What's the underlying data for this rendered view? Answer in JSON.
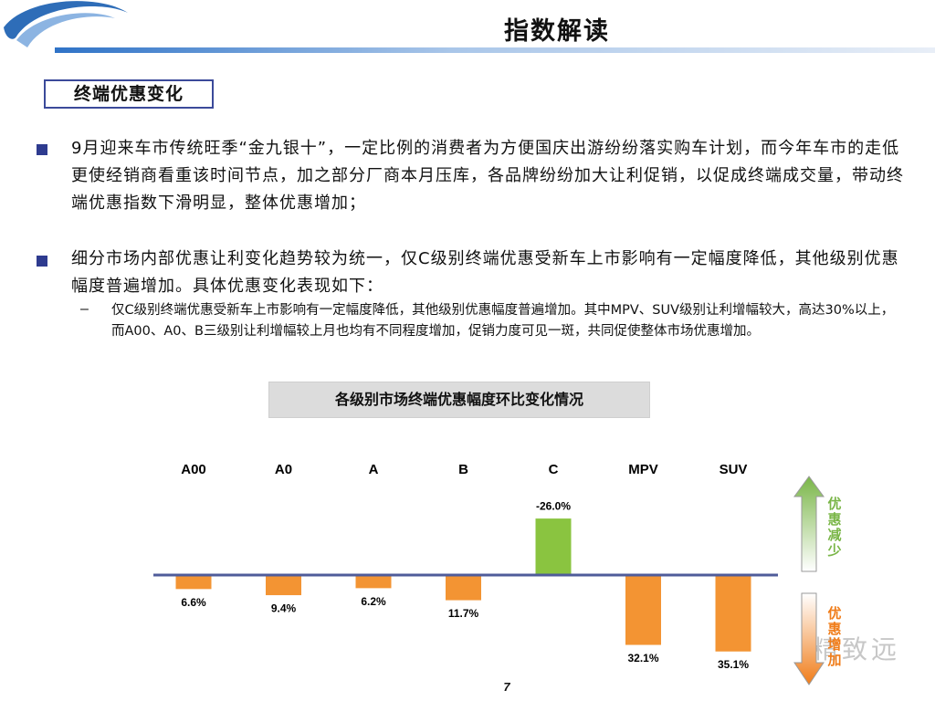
{
  "header": {
    "title": "指数解读"
  },
  "section": {
    "label": "终端优惠变化"
  },
  "bullets": [
    {
      "text": "9月迎来车市传统旺季“金九银十”，一定比例的消费者为方便国庆出游纷纷落实购车计划，而今年车市的走低更使经销商看重该时间节点，加之部分厂商本月压库，各品牌纷纷加大让利促销，以促成终端成交量，带动终端优惠指数下滑明显，整体优惠增加；"
    },
    {
      "text": "细分市场内部优惠让利变化趋势较为统一，仅C级别终端优惠受新车上市影响有一定幅度降低，其他级别优惠幅度普遍增加。具体优惠变化表现如下："
    }
  ],
  "sub_bullet": {
    "dash": "–",
    "text": "仅C级别终端优惠受新车上市影响有一定幅度降低，其他级别优惠幅度普遍增加。其中MPV、SUV级别让利增幅较大，高达30%以上，而A00、A0、B三级别让利增幅较上月也均有不同程度增加，促销力度可见一斑，共同促使整体市场优惠增加。"
  },
  "chart_data": {
    "type": "bar",
    "title": "各级别市场终端优惠幅度环比变化情况",
    "categories": [
      "A00",
      "A0",
      "A",
      "B",
      "C",
      "MPV",
      "SUV"
    ],
    "values": [
      6.6,
      9.4,
      6.2,
      11.7,
      -26.0,
      32.1,
      35.1
    ],
    "value_labels": [
      "6.6%",
      "9.4%",
      "6.2%",
      "11.7%",
      "-26.0%",
      "32.1%",
      "35.1%"
    ],
    "colors": {
      "increase": "#f39433",
      "decrease": "#8ac440",
      "baseline": "#4f5c9a"
    },
    "indicators": {
      "up_label": "优惠减少",
      "down_label": "优惠增加",
      "up_color": "#7ab648",
      "down_color": "#f07d1a"
    },
    "grid": false
  },
  "footer": {
    "page_number": "7",
    "watermark": "精致远"
  }
}
